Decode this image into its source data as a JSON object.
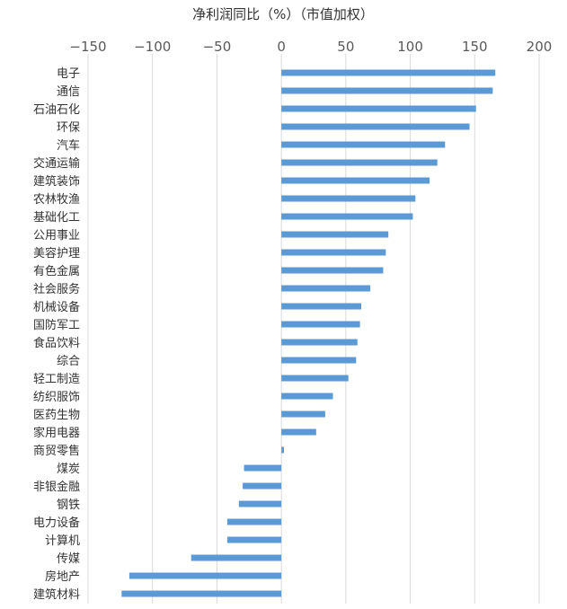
{
  "chart_data": {
    "type": "bar",
    "orientation": "horizontal",
    "title": "净利润同比（%）（市值加权）",
    "xlim": [
      -150,
      200
    ],
    "xticks": [
      "−150",
      "−100",
      "−50",
      "0",
      "50",
      "100",
      "150",
      "200"
    ],
    "xtick_values": [
      -150,
      -100,
      -50,
      0,
      50,
      100,
      150,
      200
    ],
    "grid": "vertical",
    "bar_color": "#5B9BD5",
    "categories": [
      "电子",
      "通信",
      "石油石化",
      "环保",
      "汽车",
      "交通运输",
      "建筑装饰",
      "农林牧渔",
      "基础化工",
      "公用事业",
      "美容护理",
      "有色金属",
      "社会服务",
      "机械设备",
      "国防军工",
      "食品饮料",
      "综合",
      "轻工制造",
      "纺织服饰",
      "医药生物",
      "家用电器",
      "商贸零售",
      "煤炭",
      "非银金融",
      "钢铁",
      "电力设备",
      "计算机",
      "传媒",
      "房地产",
      "建筑材料"
    ],
    "values": [
      166,
      164,
      151,
      146,
      127,
      121,
      115,
      104,
      102,
      83,
      81,
      79,
      69,
      62,
      61,
      59,
      58,
      52,
      40,
      34,
      27,
      2,
      -29,
      -30,
      -33,
      -42,
      -42,
      -70,
      -118,
      -124
    ]
  }
}
